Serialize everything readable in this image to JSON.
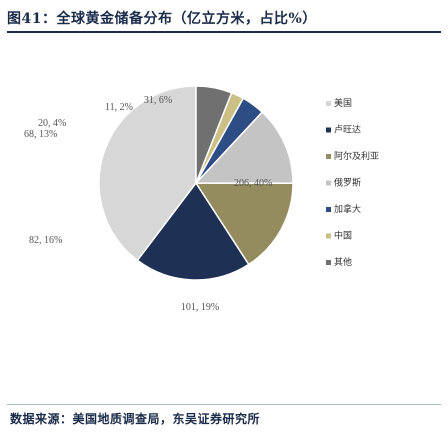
{
  "title": "图41：全球黄金储备分布（亿立方米，占比%）",
  "source": "数据来源：美国地质调查局，东吴证券研究所",
  "chart_data": {
    "type": "pie",
    "start_angle_deg": 270,
    "direction": "counterclockwise",
    "slices": [
      {
        "name": "美国",
        "value": 206,
        "label": "206, 40%",
        "color": "#d7d7d7"
      },
      {
        "name": "卢旺达",
        "value": 101,
        "label": "101, 19%",
        "color": "#1e3155"
      },
      {
        "name": "阿尔及利亚",
        "value": 82,
        "label": "82, 16%",
        "color": "#948b5e"
      },
      {
        "name": "俄罗斯",
        "value": 68,
        "label": "68, 13%",
        "color": "#c4c4c4"
      },
      {
        "name": "加拿大",
        "value": 20,
        "label": "20, 4%",
        "color": "#2e4d85"
      },
      {
        "name": "中国",
        "value": 11,
        "label": "11, 2%",
        "color": "#cbbf86"
      },
      {
        "name": "其他",
        "value": 31,
        "label": "31, 6%",
        "color": "#707070"
      }
    ],
    "legend": {
      "position": "right"
    }
  }
}
